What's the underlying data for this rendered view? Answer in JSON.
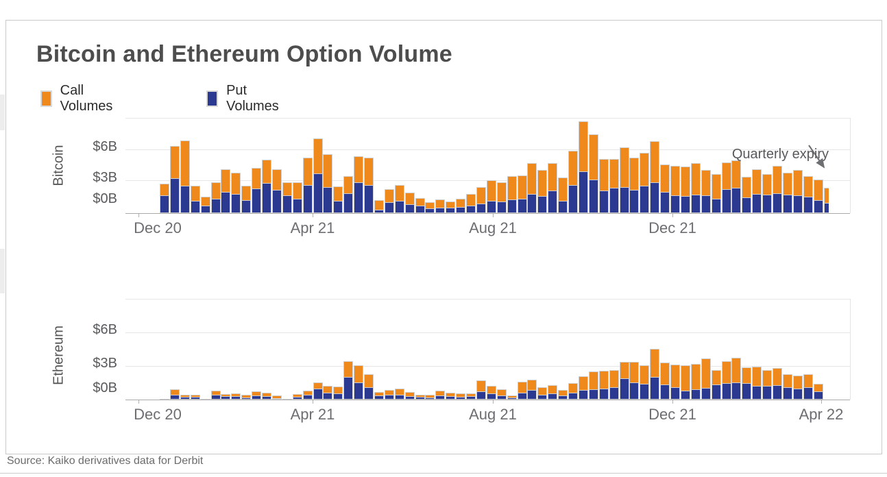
{
  "title": "Bitcoin and Ethereum Option Volume",
  "legend": [
    {
      "label": "Call Volumes",
      "color": "#F0891C"
    },
    {
      "label": "Put Volumes",
      "color": "#2B3990"
    }
  ],
  "annotation": {
    "text": "Quarterly expiry"
  },
  "source": "Source: Kaiko derivatives data for Derbit",
  "colors": {
    "call": "#F0891C",
    "put": "#2B3990",
    "bar_outline": "#cfcfcf",
    "grid": "#e6e6e6",
    "axis_text": "#58595b",
    "title_text": "#4d4d4d"
  },
  "chart_data": [
    {
      "type": "bar",
      "stacked": true,
      "panel_label": "Bitcoin",
      "x_unit": "weekly, Dec 2020 - Apr 2022",
      "y_ticks": [
        "$0B",
        "$3B",
        "$6B"
      ],
      "ylim": [
        0,
        9
      ],
      "grid": "horizontal",
      "legend_position": "top-left",
      "x_ticks": [
        {
          "label": "Dec 20",
          "pos": 0.044
        },
        {
          "label": "Apr 21",
          "pos": 0.258
        },
        {
          "label": "Aug 21",
          "pos": 0.507
        },
        {
          "label": "Dec 21",
          "pos": 0.755
        }
      ],
      "series": [
        {
          "name": "Call Volumes",
          "values": [
            1.2,
            3.1,
            4.4,
            1.5,
            0.9,
            1.6,
            2.2,
            2.1,
            1.45,
            2.05,
            2.3,
            2.05,
            1.3,
            1.65,
            2.7,
            3.4,
            3.2,
            1.45,
            1.7,
            2.55,
            2.65,
            0.95,
            1.3,
            1.55,
            1.15,
            0.8,
            0.65,
            0.85,
            0.65,
            0.85,
            1.15,
            1.6,
            2.0,
            1.9,
            2.3,
            2.3,
            3.0,
            2.55,
            2.65,
            2.3,
            3.35,
            4.8,
            4.4,
            3.05,
            2.8,
            3.85,
            3.1,
            3.2,
            4.0,
            2.7,
            2.9,
            2.9,
            3.05,
            2.5,
            2.4,
            2.6,
            2.65,
            2.0,
            2.4,
            2.05,
            2.7,
            2.15,
            2.5,
            2.0,
            2.05,
            1.5
          ]
        },
        {
          "name": "Put Volumes",
          "values": [
            1.7,
            3.3,
            2.6,
            1.2,
            0.7,
            1.4,
            2.0,
            1.8,
            1.25,
            2.35,
            2.9,
            2.25,
            1.7,
            1.35,
            2.7,
            3.8,
            2.5,
            1.15,
            1.9,
            2.95,
            2.65,
            0.35,
            1.05,
            1.2,
            0.85,
            0.7,
            0.45,
            0.5,
            0.5,
            0.6,
            0.7,
            0.9,
            1.2,
            1.1,
            1.3,
            1.35,
            1.85,
            1.6,
            2.15,
            1.2,
            2.65,
            4.0,
            3.2,
            2.15,
            2.4,
            2.45,
            2.2,
            2.6,
            2.95,
            2.05,
            1.7,
            1.6,
            1.75,
            1.7,
            1.4,
            2.3,
            2.4,
            1.5,
            1.85,
            1.75,
            1.9,
            1.75,
            1.7,
            1.55,
            1.25,
            1.0
          ]
        }
      ]
    },
    {
      "type": "bar",
      "stacked": true,
      "panel_label": "Ethereum",
      "x_unit": "weekly, Dec 2020 - Apr 2022",
      "y_ticks": [
        "$0B",
        "$3B",
        "$6B"
      ],
      "ylim": [
        0,
        9
      ],
      "grid": "horizontal",
      "x_ticks": [
        {
          "label": "Dec 20",
          "pos": 0.044
        },
        {
          "label": "Apr 21",
          "pos": 0.258
        },
        {
          "label": "Aug 21",
          "pos": 0.507
        },
        {
          "label": "Dec 21",
          "pos": 0.755
        },
        {
          "label": "Apr 22",
          "pos": 0.96
        }
      ],
      "series": [
        {
          "name": "Call Volumes",
          "values": [
            0.04,
            0.55,
            0.25,
            0.25,
            0.05,
            0.45,
            0.25,
            0.3,
            0.3,
            0.45,
            0.37,
            0.33,
            0.05,
            0.33,
            0.45,
            0.6,
            0.7,
            0.65,
            1.45,
            1.6,
            1.2,
            0.37,
            0.51,
            0.6,
            0.4,
            0.26,
            0.3,
            0.46,
            0.37,
            0.36,
            0.32,
            1.05,
            0.75,
            0.62,
            0.25,
            1.05,
            1.0,
            0.75,
            0.8,
            0.57,
            0.9,
            1.3,
            1.65,
            1.65,
            1.6,
            1.55,
            1.9,
            1.7,
            2.55,
            2.0,
            2.1,
            2.3,
            2.35,
            2.7,
            1.35,
            2.0,
            2.25,
            1.45,
            1.75,
            1.45,
            1.6,
            1.25,
            1.2,
            1.25,
            0.75
          ]
        },
        {
          "name": "Put Volumes",
          "values": [
            0.04,
            0.4,
            0.25,
            0.25,
            0.05,
            0.4,
            0.3,
            0.3,
            0.2,
            0.35,
            0.33,
            0.12,
            0.05,
            0.27,
            0.45,
            1.0,
            0.6,
            0.55,
            2.05,
            1.55,
            1.1,
            0.38,
            0.44,
            0.4,
            0.3,
            0.24,
            0.2,
            0.34,
            0.28,
            0.24,
            0.28,
            0.75,
            0.55,
            0.38,
            0.2,
            0.6,
            0.85,
            0.4,
            0.55,
            0.38,
            0.6,
            0.85,
            0.9,
            0.95,
            1.1,
            1.9,
            1.55,
            1.4,
            2.0,
            1.35,
            1.1,
            0.8,
            0.9,
            1.05,
            1.35,
            1.5,
            1.55,
            1.5,
            1.2,
            1.2,
            1.3,
            1.1,
            0.95,
            1.1,
            0.75
          ]
        }
      ]
    }
  ]
}
